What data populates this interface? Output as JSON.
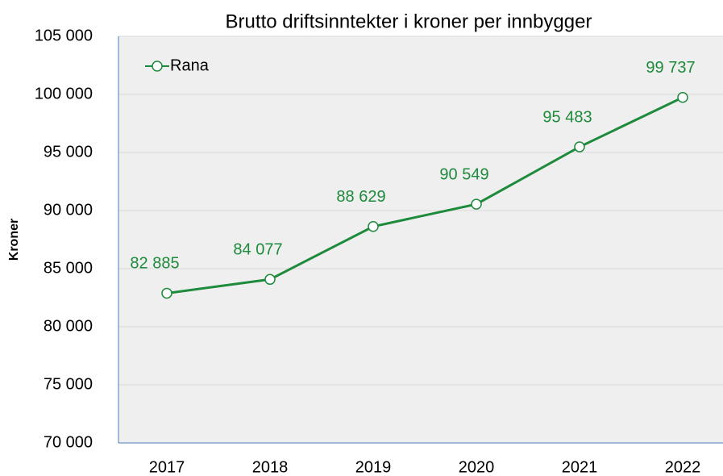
{
  "chart_data": {
    "type": "line",
    "title": "Brutto driftsinntekter i kroner per innbygger",
    "y_label": "Kroner",
    "categories": [
      "2017",
      "2018",
      "2019",
      "2020",
      "2021",
      "2022"
    ],
    "series": [
      {
        "name": "Rana",
        "color": "#1e8a3c",
        "values": [
          82885,
          84077,
          88629,
          90549,
          95483,
          99737
        ],
        "value_labels": [
          "82 885",
          "84 077",
          "88 629",
          "90 549",
          "95 483",
          "99 737"
        ]
      }
    ],
    "ylim": [
      70000,
      105000
    ],
    "yticks": [
      {
        "value": 70000,
        "label": "70 000"
      },
      {
        "value": 75000,
        "label": "75 000"
      },
      {
        "value": 80000,
        "label": "80 000"
      },
      {
        "value": 85000,
        "label": "85 000"
      },
      {
        "value": 90000,
        "label": "90 000"
      },
      {
        "value": 95000,
        "label": "95 000"
      },
      {
        "value": 100000,
        "label": "100 000"
      },
      {
        "value": 105000,
        "label": "105 000"
      }
    ],
    "grid": true,
    "legend": "upper left"
  }
}
